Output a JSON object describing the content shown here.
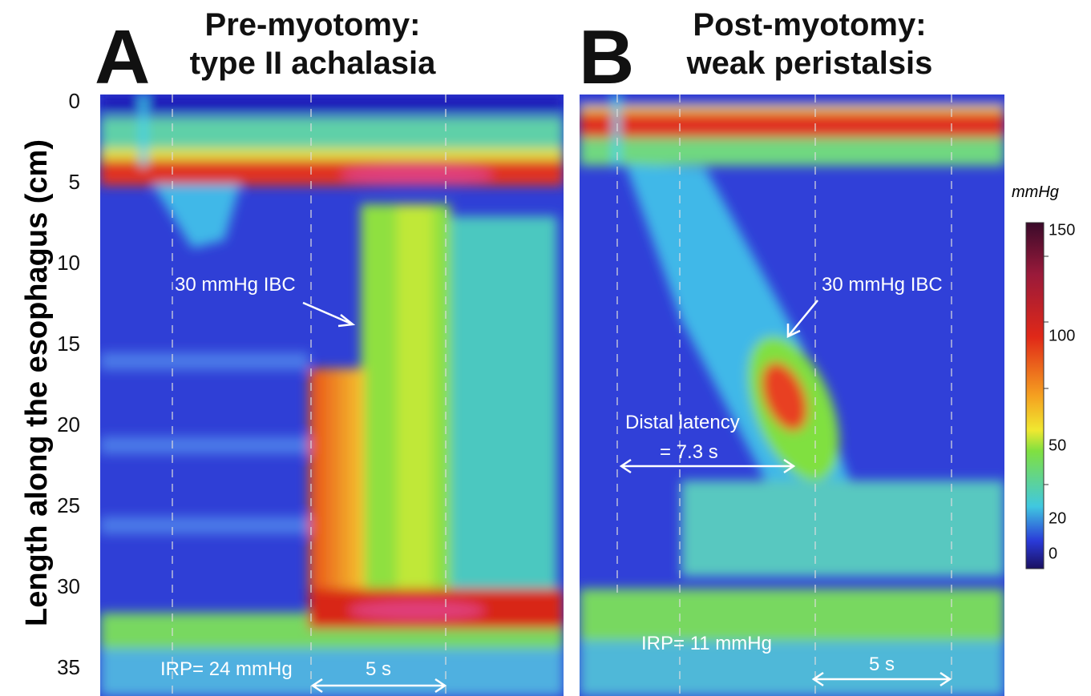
{
  "y_axis": {
    "label": "Length along the esophagus (cm)",
    "ticks": [
      0,
      5,
      10,
      15,
      20,
      25,
      30,
      35
    ]
  },
  "panels": [
    {
      "letter": "A",
      "title": [
        "Pre-myotomy:",
        "type II achalasia"
      ],
      "annotations": [
        "30 mmHg IBC",
        "IRP= 24 mmHg"
      ],
      "scale_bar": "5 s"
    },
    {
      "letter": "B",
      "title": [
        "Post-myotomy:",
        "weak peristalsis"
      ],
      "annotations": [
        "30 mmHg IBC",
        "Distal latency",
        "= 7.3 s",
        "IRP= 11 mmHg"
      ],
      "scale_bar": "5 s"
    }
  ],
  "colorbar": {
    "unit": "mmHg",
    "ticks": [
      150,
      100,
      50,
      20,
      0
    ]
  }
}
